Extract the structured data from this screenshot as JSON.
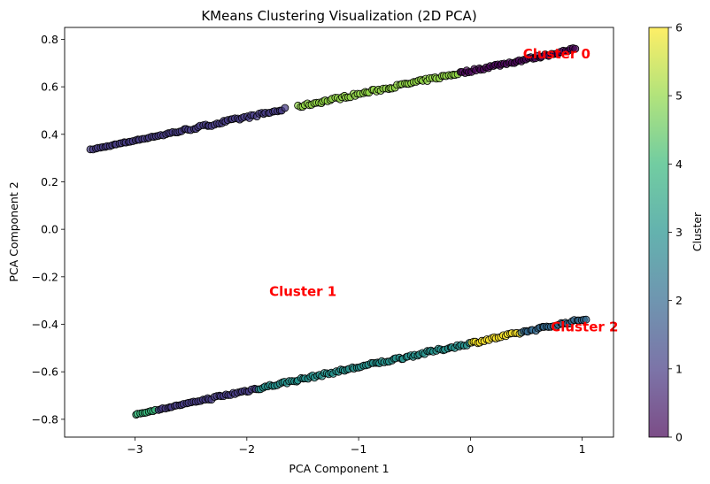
{
  "chart_data": {
    "type": "scatter",
    "title": "KMeans Clustering Visualization (2D PCA)",
    "xlabel": "PCA Component 1",
    "ylabel": "PCA Component 2",
    "xlim": [
      -3.63,
      1.28
    ],
    "ylim": [
      -0.875,
      0.85
    ],
    "xticks": [
      -3,
      -2,
      -1,
      0,
      1
    ],
    "xtick_labels": [
      "−3",
      "−2",
      "−1",
      "0",
      "1"
    ],
    "yticks": [
      -0.8,
      -0.6,
      -0.4,
      -0.2,
      0.0,
      0.2,
      0.4,
      0.6,
      0.8
    ],
    "ytick_labels": [
      "−0.8",
      "−0.6",
      "−0.4",
      "−0.2",
      "0.0",
      "0.2",
      "0.4",
      "0.6",
      "0.8"
    ],
    "grid": false,
    "legend": "none",
    "marker_edge_color": "#000000",
    "marker_alpha": 0.7,
    "colormap": "viridis",
    "colorbar": {
      "label": "Cluster",
      "range": [
        0,
        6
      ],
      "ticks": [
        0,
        1,
        2,
        3,
        4,
        5,
        6
      ],
      "tick_labels": [
        "0",
        "1",
        "2",
        "3",
        "4",
        "5",
        "6"
      ]
    },
    "viridis_stops": [
      "#440154",
      "#443983",
      "#31688e",
      "#21918c",
      "#35b779",
      "#90d743",
      "#fde725"
    ],
    "upper_band": {
      "x_range": [
        -3.4,
        0.95
      ],
      "y_at_start": 0.335,
      "y_at_end": 0.76,
      "segments": [
        {
          "x_from": -3.4,
          "x_to": -1.65,
          "cluster": 1
        },
        {
          "x_from": -1.55,
          "x_to": -0.1,
          "cluster": 5
        },
        {
          "x_from": -0.1,
          "x_to": 0.95,
          "cluster": 0
        }
      ]
    },
    "lower_band": {
      "x_range": [
        -3.0,
        1.05
      ],
      "y_at_start": -0.78,
      "y_at_end": -0.375,
      "segments": [
        {
          "x_from": -3.0,
          "x_to": -2.8,
          "cluster": 4
        },
        {
          "x_from": -2.8,
          "x_to": -1.9,
          "cluster": 1
        },
        {
          "x_from": -1.9,
          "x_to": 0.0,
          "cluster": 3
        },
        {
          "x_from": 0.0,
          "x_to": 0.45,
          "cluster": 6
        },
        {
          "x_from": 0.45,
          "x_to": 1.05,
          "cluster": 2
        }
      ]
    },
    "annotations": [
      {
        "text": "Cluster 0",
        "x": 0.47,
        "y": 0.72,
        "color": "#ff0000"
      },
      {
        "text": "Cluster 1",
        "x": -1.8,
        "y": -0.28,
        "color": "#ff0000"
      },
      {
        "text": "Cluster 2",
        "x": 0.72,
        "y": -0.43,
        "color": "#ff0000"
      }
    ]
  }
}
